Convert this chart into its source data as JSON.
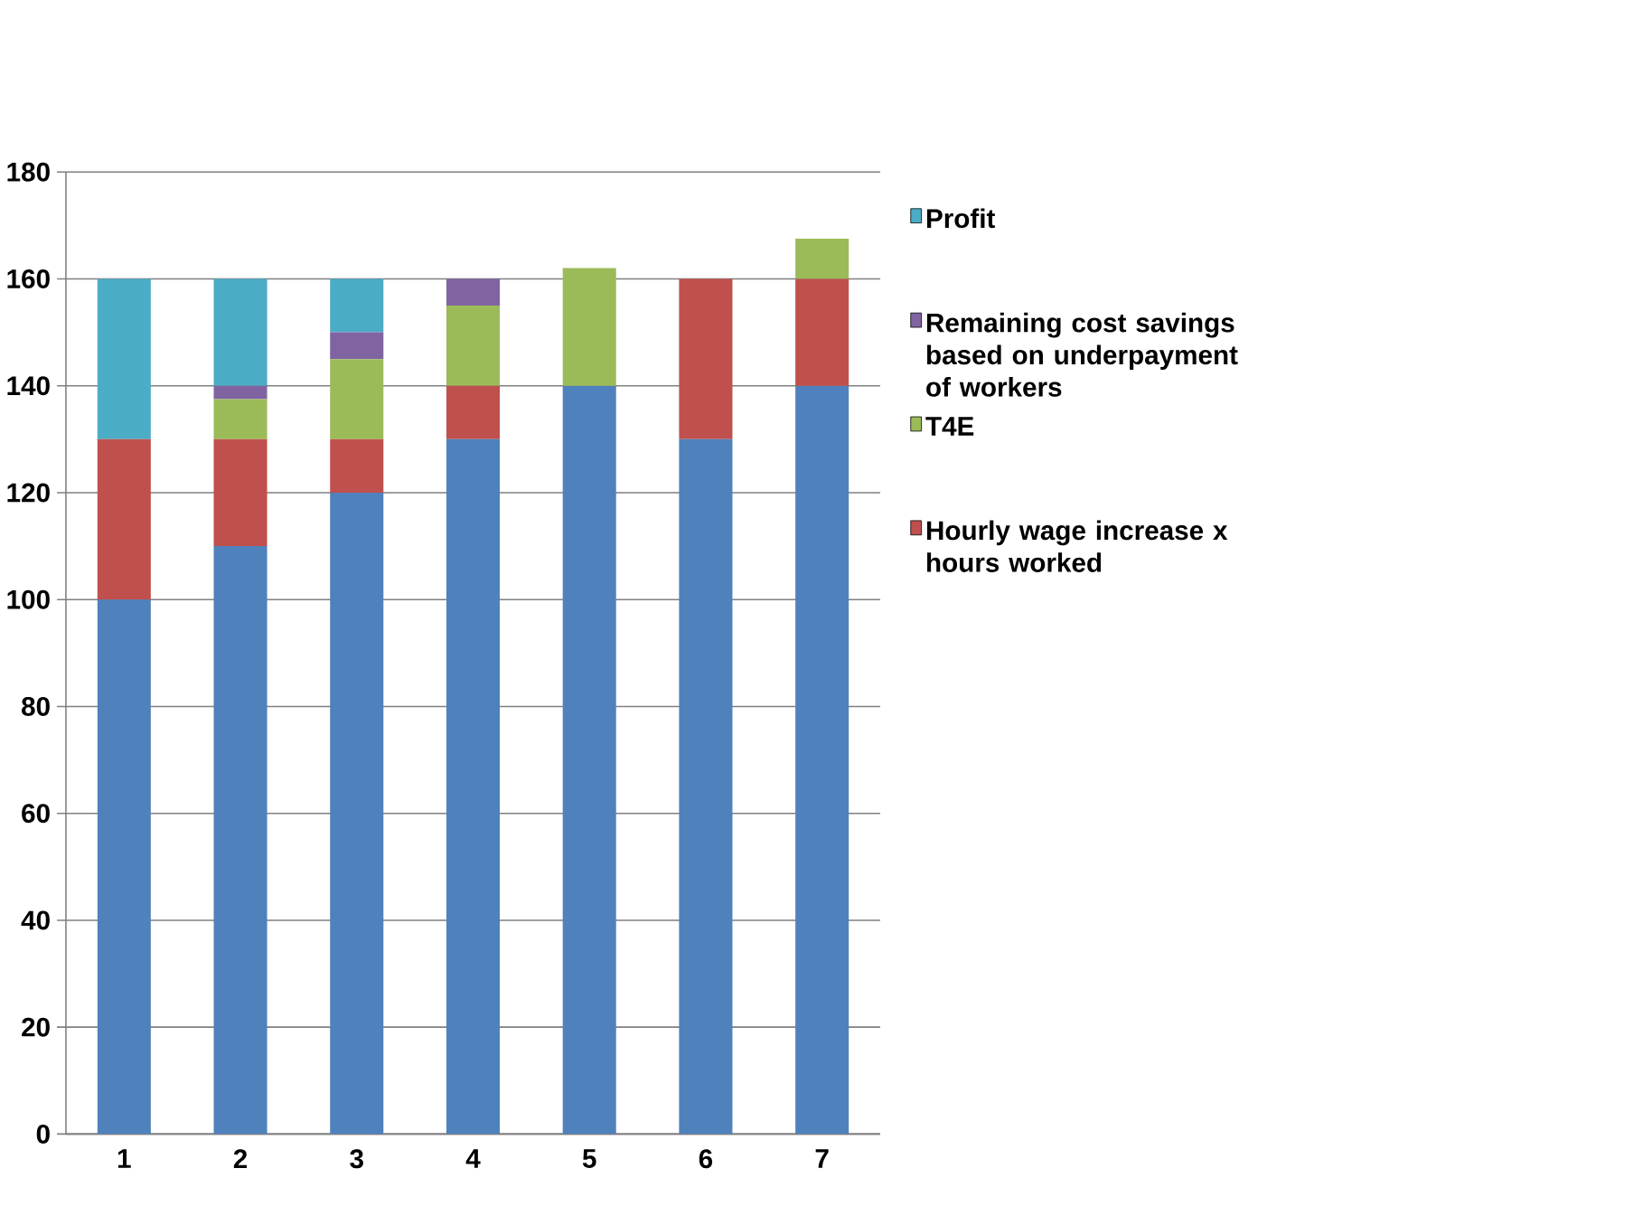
{
  "chart_data": {
    "type": "bar",
    "stacked": true,
    "categories": [
      "1",
      "2",
      "3",
      "4",
      "5",
      "6",
      "7"
    ],
    "series": [
      {
        "color": "#4f81bd",
        "values": [
          100,
          110,
          120,
          130,
          140,
          130,
          140
        ]
      },
      {
        "name": "Hourly wage increase x hours worked",
        "color": "#c0504d",
        "values": [
          30,
          20,
          10,
          10,
          null,
          30,
          20
        ]
      },
      {
        "name": "T4E",
        "color": "#9bbb59",
        "values": [
          null,
          7.5,
          15,
          15,
          22,
          null,
          7.5
        ]
      },
      {
        "name": "Remaining cost savings based on underpayment of workers",
        "color": "#8064a2",
        "values": [
          null,
          2.5,
          5,
          5,
          null,
          null,
          null
        ]
      },
      {
        "name": "Profit",
        "color": "#4bacc6",
        "values": [
          30,
          20,
          10,
          null,
          null,
          null,
          null
        ]
      }
    ],
    "ylim": [
      0,
      180
    ],
    "yticks": [
      0,
      20,
      40,
      60,
      80,
      100,
      120,
      140,
      160,
      180
    ],
    "grid": "y",
    "legend": "right"
  }
}
